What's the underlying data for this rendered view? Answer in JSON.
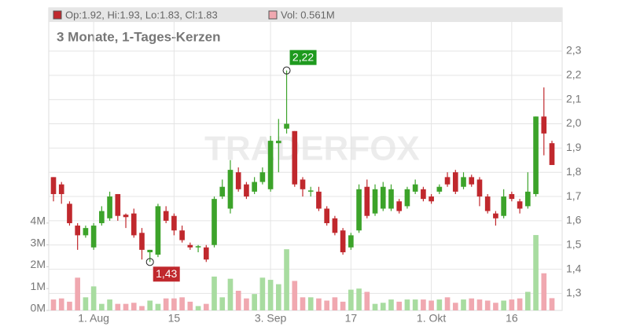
{
  "chart_data": {
    "type": "candlestick",
    "subtitle": "3 Monate, 1-Tages-Kerzen",
    "watermark": "TRADERFOX",
    "categories": [
      null,
      null,
      null,
      null,
      null,
      "1. Aug",
      null,
      null,
      null,
      null,
      null,
      null,
      null,
      null,
      null,
      "15",
      null,
      null,
      null,
      null,
      null,
      null,
      null,
      null,
      null,
      null,
      null,
      "3. Sep",
      null,
      null,
      null,
      null,
      null,
      null,
      null,
      null,
      null,
      "17",
      null,
      null,
      null,
      null,
      null,
      null,
      null,
      null,
      null,
      "1. Okt",
      null,
      null,
      null,
      null,
      null,
      null,
      null,
      null,
      null,
      "16",
      null,
      null,
      null,
      null,
      null
    ],
    "series": [
      {
        "name": "Op:1.92, Hi:1.93, Lo:1.83, Cl:1.83",
        "color": "#c0282d",
        "up_color": "#3ca32a",
        "open": [
          1.78,
          1.75,
          1.67,
          1.58,
          1.54,
          1.49,
          1.59,
          1.61,
          1.71,
          1.625,
          1.63,
          1.55,
          1.47,
          1.46,
          1.64,
          1.62,
          1.56,
          1.5,
          1.49,
          1.49,
          1.5,
          1.7,
          1.65,
          1.8,
          1.75,
          1.72,
          1.76,
          1.73,
          1.92,
          1.98,
          1.97,
          1.77,
          1.72,
          1.72,
          1.65,
          1.61,
          1.56,
          1.49,
          1.56,
          1.74,
          1.63,
          1.65,
          1.65,
          1.68,
          1.66,
          1.72,
          1.73,
          1.7,
          1.72,
          1.78,
          1.8,
          1.74,
          1.78,
          1.77,
          1.7,
          1.63,
          1.62,
          1.71,
          1.68,
          1.66,
          1.71,
          2.03,
          1.92
        ],
        "high": [
          1.78,
          1.76,
          1.68,
          1.59,
          1.58,
          1.59,
          1.66,
          1.72,
          1.71,
          1.63,
          1.65,
          1.57,
          1.48,
          1.67,
          1.66,
          1.63,
          1.58,
          1.51,
          1.5,
          1.5,
          1.7,
          1.77,
          1.85,
          1.82,
          1.76,
          1.78,
          1.82,
          1.95,
          2.02,
          2.22,
          1.97,
          1.78,
          1.74,
          1.74,
          1.66,
          1.62,
          1.57,
          1.55,
          1.75,
          1.77,
          1.75,
          1.76,
          1.75,
          1.69,
          1.74,
          1.77,
          1.74,
          1.71,
          1.75,
          1.8,
          1.81,
          1.8,
          1.79,
          1.78,
          1.71,
          1.64,
          1.73,
          1.72,
          1.69,
          1.8,
          2.03,
          2.15,
          1.93
        ],
        "low": [
          1.68,
          1.67,
          1.58,
          1.48,
          1.53,
          1.48,
          1.58,
          1.6,
          1.6,
          1.57,
          1.53,
          1.44,
          1.43,
          1.45,
          1.59,
          1.54,
          1.51,
          1.48,
          1.47,
          1.43,
          1.49,
          1.69,
          1.63,
          1.72,
          1.69,
          1.71,
          1.75,
          1.72,
          1.8,
          1.96,
          1.74,
          1.7,
          1.7,
          1.64,
          1.58,
          1.54,
          1.46,
          1.48,
          1.55,
          1.61,
          1.62,
          1.64,
          1.64,
          1.63,
          1.65,
          1.71,
          1.68,
          1.67,
          1.71,
          1.74,
          1.71,
          1.73,
          1.74,
          1.66,
          1.63,
          1.58,
          1.61,
          1.68,
          1.63,
          1.65,
          1.7,
          1.87,
          1.83
        ],
        "close": [
          1.71,
          1.71,
          1.59,
          1.54,
          1.57,
          1.58,
          1.64,
          1.7,
          1.62,
          1.615,
          1.54,
          1.48,
          1.48,
          1.66,
          1.6,
          1.56,
          1.52,
          1.49,
          1.495,
          1.44,
          1.69,
          1.74,
          1.81,
          1.73,
          1.7,
          1.76,
          1.8,
          1.93,
          1.93,
          2.0,
          1.75,
          1.73,
          1.725,
          1.65,
          1.59,
          1.55,
          1.47,
          1.54,
          1.73,
          1.62,
          1.73,
          1.74,
          1.73,
          1.64,
          1.73,
          1.75,
          1.69,
          1.68,
          1.74,
          1.75,
          1.72,
          1.78,
          1.75,
          1.7,
          1.64,
          1.61,
          1.7,
          1.69,
          1.65,
          1.72,
          2.03,
          1.96,
          1.83
        ]
      },
      {
        "name": "Vol: 0.561M",
        "color": "#f0a8b0",
        "up_color": "#a8dca0",
        "axis": "y2",
        "values": [
          0.5,
          0.55,
          0.4,
          1.5,
          0.6,
          1.1,
          0.3,
          0.5,
          0.3,
          0.3,
          0.35,
          0.2,
          0.45,
          0.3,
          0.55,
          0.55,
          0.6,
          0.4,
          0.2,
          0.3,
          1.55,
          0.6,
          1.45,
          0.9,
          0.55,
          0.75,
          1.5,
          1.4,
          1.2,
          2.8,
          1.35,
          0.6,
          0.6,
          0.55,
          0.45,
          0.6,
          0.4,
          0.95,
          1.0,
          0.85,
          0.3,
          0.35,
          0.5,
          0.4,
          0.5,
          0.5,
          0.5,
          0.45,
          0.5,
          0.6,
          0.35,
          0.5,
          0.55,
          0.5,
          0.45,
          0.35,
          0.45,
          0.5,
          0.55,
          0.85,
          3.45,
          1.7,
          0.561
        ]
      }
    ],
    "annotations": [
      {
        "value": 2.22,
        "label": "2,22",
        "color": "#1e9a1e"
      },
      {
        "value": 1.43,
        "label": "1,43",
        "color": "#c0282d"
      }
    ],
    "ylim": [
      1.23,
      2.42
    ],
    "yticks": [
      {
        "value": 1.3,
        "label": "1,3"
      },
      {
        "value": 1.4,
        "label": "1,4"
      },
      {
        "value": 1.5,
        "label": "1,5"
      },
      {
        "value": 1.6,
        "label": "1,6"
      },
      {
        "value": 1.7,
        "label": "1,7"
      },
      {
        "value": 1.8,
        "label": "1,8"
      },
      {
        "value": 1.9,
        "label": "1,9"
      },
      {
        "value": 2.0,
        "label": "2,0"
      },
      {
        "value": 2.1,
        "label": "2,1"
      },
      {
        "value": 2.2,
        "label": "2,2"
      },
      {
        "value": 2.3,
        "label": "2,3"
      }
    ],
    "y2lim": [
      0,
      13.2
    ],
    "y2ticks": [
      {
        "value": 0,
        "label": "0M"
      },
      {
        "value": 1,
        "label": "1M"
      },
      {
        "value": 2,
        "label": "2M"
      },
      {
        "value": 3,
        "label": "3M"
      },
      {
        "value": 4,
        "label": "4M"
      }
    ],
    "grid": true
  }
}
